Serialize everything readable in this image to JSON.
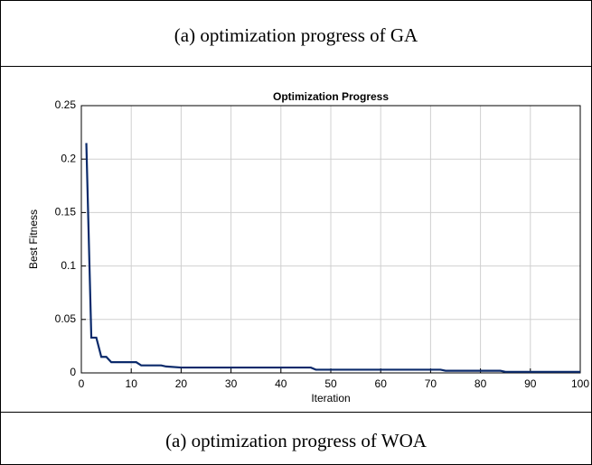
{
  "table": {
    "rows": [
      [
        "(a) optimization progress of GA"
      ],
      [
        "(a) optimization progress of WOA"
      ]
    ]
  },
  "chart_data": {
    "type": "line",
    "title": "Optimization Progress",
    "xlabel": "Iteration",
    "ylabel": "Best Fitness",
    "x": [
      1,
      2,
      3,
      4,
      5,
      6,
      11,
      12,
      16,
      17,
      20,
      46,
      47,
      72,
      73,
      84,
      85,
      100
    ],
    "series": [
      {
        "name": "Best Fitness",
        "color": "#0b2a6b",
        "values": [
          0.215,
          0.033,
          0.033,
          0.015,
          0.015,
          0.01,
          0.01,
          0.007,
          0.007,
          0.006,
          0.005,
          0.005,
          0.003,
          0.003,
          0.002,
          0.002,
          0.001,
          0.001
        ]
      }
    ],
    "xlim": [
      0,
      100
    ],
    "xticks": [
      0,
      10,
      20,
      30,
      40,
      50,
      60,
      70,
      80,
      90,
      100
    ],
    "ylim": [
      0,
      0.25
    ],
    "yticks": [
      0,
      0.05,
      0.1,
      0.15,
      0.2,
      0.25
    ],
    "grid": true
  }
}
